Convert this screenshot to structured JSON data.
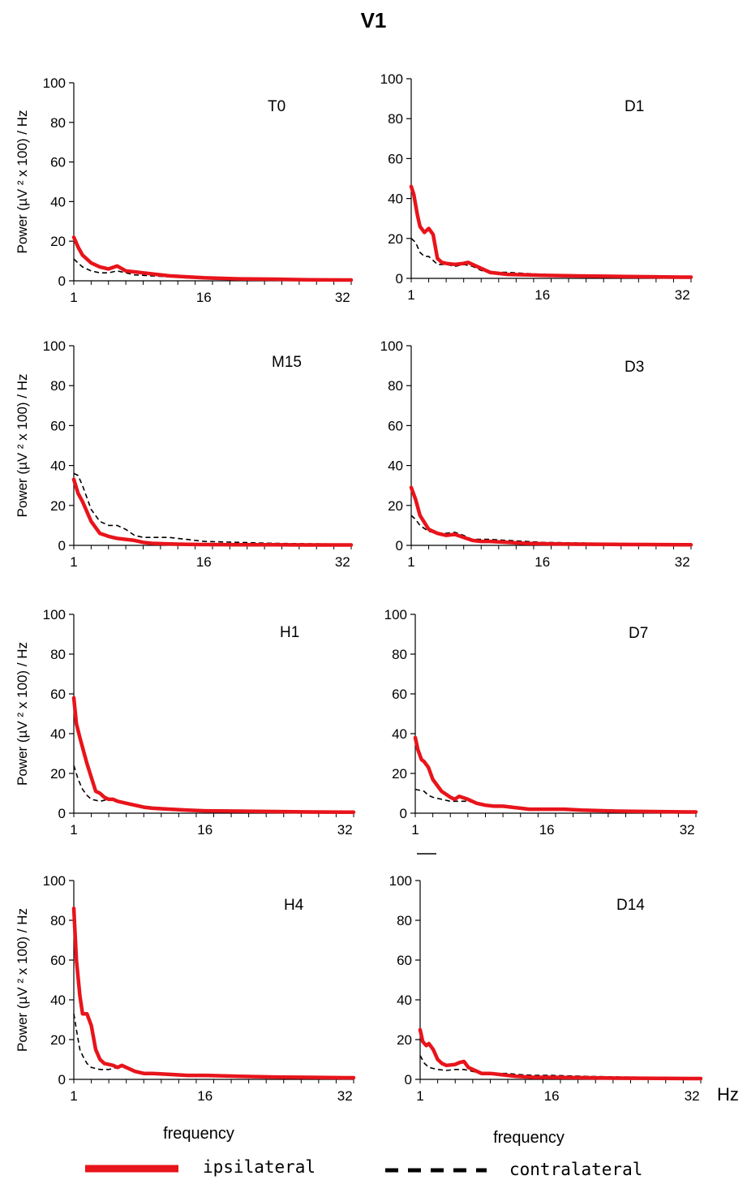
{
  "title": "V1",
  "chart_data": {
    "type": "line",
    "ylabel": "Power   (µV ² x 100) / Hz",
    "xlabel": "frequency",
    "x_unit": "Hz",
    "x_ticks": [
      1,
      16,
      32
    ],
    "y_ticks": [
      0,
      20,
      40,
      60,
      80,
      100
    ],
    "xlim": [
      1,
      33
    ],
    "ylim": [
      0,
      100
    ],
    "legend": {
      "placement": "bottom",
      "items": [
        {
          "name": "ipsilateral",
          "color": "#e8141b",
          "style": "solid"
        },
        {
          "name": "contralateral",
          "color": "#000000",
          "style": "dashed"
        }
      ]
    },
    "panels": [
      {
        "label": "T0",
        "series": [
          {
            "name": "ipsilateral",
            "x": [
              1,
              1.5,
              2,
              3,
              4,
              5,
              6,
              7,
              8,
              9,
              10,
              12,
              14,
              16,
              20,
              24,
              28,
              32,
              33
            ],
            "y": [
              22,
              17,
              13,
              9,
              7,
              6,
              7.5,
              5,
              4.5,
              4,
              3.5,
              2.5,
              2,
              1.5,
              1,
              0.8,
              0.5,
              0.4,
              0.4
            ]
          },
          {
            "name": "contralateral",
            "x": [
              1,
              1.5,
              2,
              3,
              4,
              5,
              6,
              7,
              8,
              10,
              12,
              14,
              16,
              20,
              24,
              28,
              32,
              33
            ],
            "y": [
              11,
              9,
              7,
              5,
              4,
              4,
              5,
              4,
              3,
              2.5,
              2,
              1.5,
              1.2,
              1,
              0.8,
              0.5,
              0.4,
              0.4
            ]
          }
        ]
      },
      {
        "label": "D1",
        "series": [
          {
            "name": "ipsilateral",
            "x": [
              1,
              1.3,
              1.7,
              2,
              2.5,
              3,
              3.5,
              4,
              4.5,
              5,
              6,
              7,
              7.5,
              8,
              9,
              10,
              11,
              12,
              14,
              16,
              20,
              24,
              28,
              32,
              33
            ],
            "y": [
              46,
              42,
              32,
              26,
              23,
              25,
              22,
              10,
              8,
              7.5,
              7,
              7.5,
              8,
              7,
              5,
              3,
              2.5,
              2,
              1.8,
              1.5,
              1.2,
              1,
              0.8,
              0.6,
              0.6
            ]
          },
          {
            "name": "contralateral",
            "x": [
              1,
              1.5,
              2,
              2.5,
              3,
              4,
              5,
              6,
              7,
              8,
              9,
              10,
              11,
              12,
              14,
              16,
              20,
              24,
              28,
              32,
              33
            ],
            "y": [
              20,
              18,
              13,
              11,
              11,
              7,
              7,
              6,
              7,
              6,
              4,
              3,
              3,
              3,
              2.5,
              2,
              1.5,
              1.2,
              1,
              0.8,
              0.8
            ]
          }
        ]
      },
      {
        "label": "M15",
        "series": [
          {
            "name": "ipsilateral",
            "x": [
              1,
              1.5,
              2,
              3,
              4,
              5,
              6,
              7,
              8,
              9,
              10,
              12,
              14,
              16,
              20,
              24,
              28,
              32,
              33
            ],
            "y": [
              33,
              26,
              22,
              12,
              6,
              4.5,
              3.5,
              3,
              2.5,
              1.5,
              1,
              0.7,
              0.5,
              0.4,
              0.3,
              0.3,
              0.2,
              0.2,
              0.2
            ]
          },
          {
            "name": "contralateral",
            "x": [
              1,
              1.5,
              2,
              3,
              4,
              5,
              6,
              7,
              8,
              9,
              10,
              11,
              12,
              14,
              16,
              20,
              24,
              28,
              32,
              33
            ],
            "y": [
              36,
              35,
              30,
              18,
              12,
              10,
              10,
              8,
              5,
              4,
              4,
              4,
              4,
              3,
              2,
              1.5,
              1,
              0.8,
              0.6,
              0.6
            ]
          }
        ]
      },
      {
        "label": "D3",
        "series": [
          {
            "name": "ipsilateral",
            "x": [
              1,
              1.5,
              2,
              3,
              4,
              5,
              6,
              7,
              8,
              9,
              10,
              12,
              14,
              16,
              20,
              24,
              28,
              32,
              33
            ],
            "y": [
              29,
              23,
              15,
              8,
              6,
              5,
              5.5,
              4,
              2.5,
              2,
              2,
              1.5,
              1,
              0.8,
              0.6,
              0.5,
              0.4,
              0.3,
              0.3
            ]
          },
          {
            "name": "contralateral",
            "x": [
              1,
              1.5,
              2,
              3,
              4,
              5,
              6,
              7,
              8,
              9,
              10,
              12,
              14,
              16,
              20,
              24,
              28,
              32,
              33
            ],
            "y": [
              15,
              13,
              10,
              7,
              6,
              6,
              6.5,
              5,
              3,
              3,
              3,
              2.5,
              2,
              1.5,
              1.2,
              1,
              0.8,
              0.6,
              0.6
            ]
          }
        ]
      },
      {
        "label": "H1",
        "series": [
          {
            "name": "ipsilateral",
            "x": [
              1,
              1.3,
              1.7,
              2,
              2.5,
              3,
              3.5,
              4,
              4.5,
              5,
              5.5,
              6,
              7,
              8,
              9,
              10,
              12,
              14,
              16,
              20,
              24,
              28,
              32,
              33
            ],
            "y": [
              58,
              45,
              38,
              33,
              25,
              18,
              11,
              10,
              8,
              7,
              7,
              6,
              5,
              4,
              3,
              2.5,
              2,
              1.5,
              1.2,
              1,
              0.8,
              0.6,
              0.5,
              0.5
            ]
          },
          {
            "name": "contralateral",
            "x": [
              1,
              1.5,
              2,
              2.5,
              3,
              4,
              5,
              5.5,
              6,
              7,
              8,
              9,
              10,
              12,
              14,
              16,
              20,
              24,
              28,
              32,
              33
            ],
            "y": [
              24,
              17,
              12,
              9,
              7,
              6,
              7,
              7,
              6,
              5,
              4,
              3.5,
              3,
              2.5,
              2,
              1.5,
              1.2,
              1,
              0.8,
              0.6,
              0.6
            ]
          }
        ]
      },
      {
        "label": "D7",
        "series": [
          {
            "name": "ipsilateral",
            "x": [
              1,
              1.3,
              1.7,
              2,
              2.5,
              3,
              4,
              5,
              5.5,
              6,
              7,
              8,
              9,
              10,
              11,
              12,
              13,
              14,
              16,
              18,
              20,
              24,
              28,
              32,
              33
            ],
            "y": [
              38,
              32,
              27,
              26,
              23,
              17,
              11,
              8,
              7,
              8.5,
              7,
              5,
              4,
              3.5,
              3.5,
              3,
              2.5,
              2,
              2,
              2,
              1.5,
              1,
              0.8,
              0.6,
              0.6
            ]
          },
          {
            "name": "contralateral",
            "x": [
              1,
              2,
              2.5,
              3,
              4,
              5,
              6,
              7,
              8,
              9,
              10,
              11,
              12,
              14,
              16,
              20,
              24,
              28,
              32,
              33
            ],
            "y": [
              12,
              11,
              9,
              8,
              7,
              6,
              6,
              6,
              5,
              4,
              3.5,
              3,
              3,
              2.5,
              2,
              1.5,
              1.2,
              1,
              0.8,
              0.8
            ]
          }
        ]
      },
      {
        "label": "H4",
        "series": [
          {
            "name": "ipsilateral",
            "x": [
              1,
              1.3,
              1.7,
              2,
              2.5,
              3,
              3.5,
              4,
              4.5,
              5,
              5.5,
              6,
              6.5,
              7,
              8,
              9,
              10,
              12,
              14,
              16,
              20,
              24,
              28,
              32,
              33
            ],
            "y": [
              86,
              60,
              42,
              33,
              33,
              27,
              15,
              10,
              8,
              7.5,
              7,
              6,
              7,
              6,
              4,
              3,
              3,
              2.5,
              2,
              2,
              1.5,
              1.2,
              1,
              0.8,
              0.8
            ]
          },
          {
            "name": "contralateral",
            "x": [
              1,
              1.3,
              1.7,
              2,
              2.5,
              3,
              4,
              5,
              6,
              6.5,
              7,
              8,
              9,
              10,
              12,
              14,
              16,
              20,
              24,
              28,
              32,
              33
            ],
            "y": [
              33,
              25,
              15,
              12,
              8,
              6,
              5,
              5,
              6,
              7,
              6,
              4,
              3.5,
              3,
              2.5,
              2,
              1.5,
              1.2,
              1,
              0.8,
              0.6,
              0.6
            ]
          }
        ]
      },
      {
        "label": "D14",
        "series": [
          {
            "name": "ipsilateral",
            "x": [
              1,
              1.3,
              1.7,
              2,
              2.5,
              3,
              3.5,
              4,
              5,
              5.5,
              6,
              6.5,
              7,
              8,
              9,
              10,
              11,
              12,
              14,
              16,
              20,
              24,
              28,
              32,
              33
            ],
            "y": [
              25,
              19,
              17,
              18,
              15,
              10,
              8,
              7,
              7.5,
              8.5,
              9,
              6,
              5,
              3,
              3,
              2.5,
              2,
              1.5,
              1,
              1,
              0.8,
              0.6,
              0.5,
              0.4,
              0.4
            ]
          },
          {
            "name": "contralateral",
            "x": [
              1,
              1.5,
              2,
              3,
              4,
              5,
              6,
              7,
              8,
              9,
              10,
              11,
              12,
              14,
              16,
              20,
              24,
              28,
              32,
              33
            ],
            "y": [
              12,
              8,
              6,
              5,
              4.5,
              5,
              5,
              4,
              3,
              3,
              3,
              3,
              2.5,
              2,
              2,
              1.5,
              1.2,
              1,
              0.8,
              0.8
            ]
          }
        ]
      }
    ]
  },
  "labels": {
    "frequency_left": "frequency",
    "frequency_right": "frequency",
    "hz": "Hz",
    "legend_ipsi": "ipsilateral",
    "legend_contra": "contralateral"
  }
}
